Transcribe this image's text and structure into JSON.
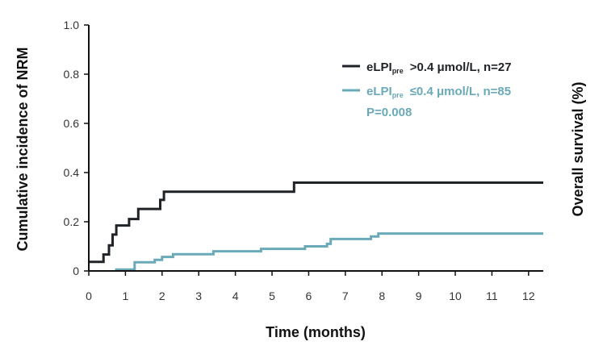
{
  "chart_data": {
    "type": "line",
    "step": true,
    "title": "",
    "xlabel": "Time (months)",
    "ylabel": "Cumulative incidence of NRM",
    "y2label": "Overall survival (%)",
    "xlim": [
      0,
      12.4
    ],
    "ylim": [
      0,
      1.0
    ],
    "xticks": [
      0,
      1,
      2,
      3,
      4,
      5,
      6,
      7,
      8,
      9,
      10,
      11,
      12
    ],
    "yticks": [
      0,
      0.2,
      0.4,
      0.6,
      0.8,
      1.0
    ],
    "ytick_labels": [
      "0",
      "0.2",
      "0.4",
      "0.6",
      "0.8",
      "1.0"
    ],
    "legend_position": "top-right",
    "series": [
      {
        "name_main": "eLPI",
        "name_sub": "pre",
        "name_rest": ">0.4 μmol/L, n=27",
        "color": "#1f2328",
        "points": [
          [
            0,
            0.037
          ],
          [
            0.4,
            0.037
          ],
          [
            0.4,
            0.067
          ],
          [
            0.55,
            0.067
          ],
          [
            0.55,
            0.104
          ],
          [
            0.65,
            0.104
          ],
          [
            0.65,
            0.148
          ],
          [
            0.75,
            0.148
          ],
          [
            0.75,
            0.185
          ],
          [
            1.1,
            0.185
          ],
          [
            1.1,
            0.211
          ],
          [
            1.35,
            0.211
          ],
          [
            1.35,
            0.252
          ],
          [
            1.95,
            0.252
          ],
          [
            1.95,
            0.289
          ],
          [
            2.05,
            0.289
          ],
          [
            2.05,
            0.322
          ],
          [
            5.6,
            0.322
          ],
          [
            5.6,
            0.359
          ],
          [
            12.4,
            0.359
          ]
        ]
      },
      {
        "name_main": "eLPI",
        "name_sub": "pre",
        "name_rest": "≤0.4 μmol/L, n=85",
        "color": "#6aaab8",
        "points": [
          [
            0.75,
            0
          ],
          [
            0.75,
            0.006
          ],
          [
            1.25,
            0.006
          ],
          [
            1.25,
            0.035
          ],
          [
            1.8,
            0.035
          ],
          [
            1.8,
            0.045
          ],
          [
            2.0,
            0.045
          ],
          [
            2.0,
            0.057
          ],
          [
            2.3,
            0.057
          ],
          [
            2.3,
            0.068
          ],
          [
            3.4,
            0.068
          ],
          [
            3.4,
            0.08
          ],
          [
            4.7,
            0.08
          ],
          [
            4.7,
            0.09
          ],
          [
            5.9,
            0.09
          ],
          [
            5.9,
            0.1
          ],
          [
            6.5,
            0.1
          ],
          [
            6.5,
            0.11
          ],
          [
            6.6,
            0.11
          ],
          [
            6.6,
            0.13
          ],
          [
            7.7,
            0.13
          ],
          [
            7.7,
            0.14
          ],
          [
            7.9,
            0.14
          ],
          [
            7.9,
            0.152
          ],
          [
            12.4,
            0.152
          ]
        ]
      }
    ],
    "annotation": "P=0.008"
  },
  "colors": {
    "axis": "#111111",
    "high_group": "#1f2328",
    "low_group": "#6aaab8"
  }
}
